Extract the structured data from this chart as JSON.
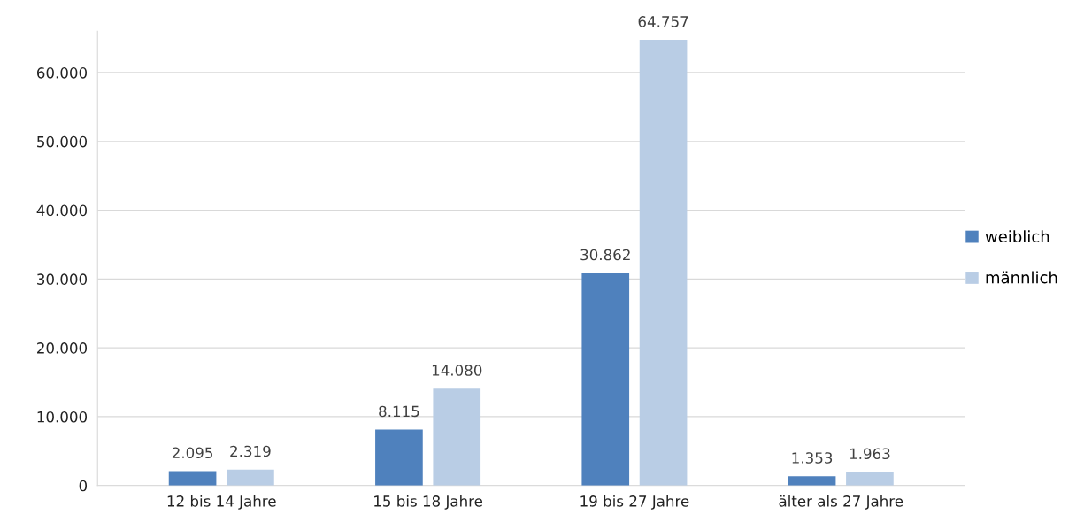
{
  "chart_data": {
    "type": "bar",
    "categories": [
      "12 bis 14 Jahre",
      "15 bis 18 Jahre",
      "19 bis 27 Jahre",
      "älter als 27 Jahre"
    ],
    "series": [
      {
        "name": "weiblich",
        "color": "#4f81bd",
        "values": [
          2095,
          8115,
          30862,
          1353
        ],
        "value_labels": [
          "2.095",
          "8.115",
          "30.862",
          "1.353"
        ]
      },
      {
        "name": "männlich",
        "color": "#b9cde5",
        "values": [
          2319,
          14080,
          64757,
          1963
        ],
        "value_labels": [
          "2.319",
          "14.080",
          "64.757",
          "1.963"
        ]
      }
    ],
    "ylim": [
      0,
      66000
    ],
    "yticks": [
      {
        "value": 0,
        "label": "0"
      },
      {
        "value": 10000,
        "label": "10.000"
      },
      {
        "value": 20000,
        "label": "20.000"
      },
      {
        "value": 30000,
        "label": "30.000"
      },
      {
        "value": 40000,
        "label": "40.000"
      },
      {
        "value": 50000,
        "label": "50.000"
      },
      {
        "value": 60000,
        "label": "60.000"
      }
    ],
    "grid": "y",
    "legend": "right"
  }
}
